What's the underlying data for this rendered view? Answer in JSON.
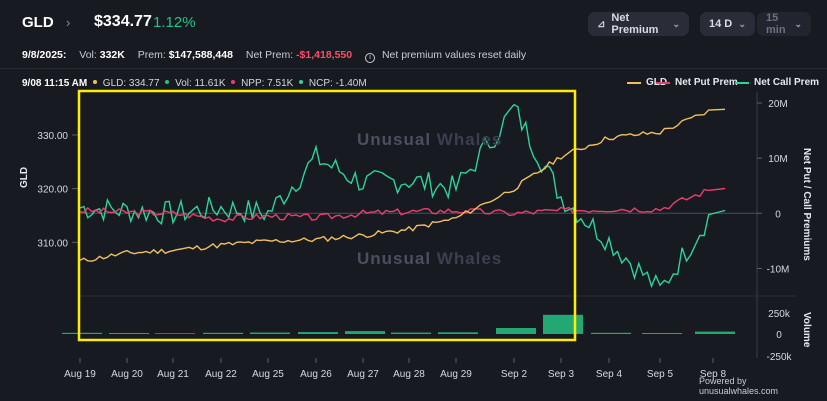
{
  "header": {
    "ticker": "GLD",
    "price": "$334.77",
    "change": "1.12%",
    "net_premium_btn": "Net Premium",
    "days_btn": "14 D",
    "mins_btn": "15 min"
  },
  "stats": {
    "date": "9/8/2025:",
    "vol_label": "Vol:",
    "vol_value": "332K",
    "prem_label": "Prem:",
    "prem_value": "$147,588,448",
    "net_prem_label": "Net Prem:",
    "net_prem_value": "-$1,418,550",
    "info_text": "Net premium values reset daily"
  },
  "cursor_line": {
    "time": "9/08 11:15 AM",
    "gld": "GLD: 334.77",
    "vol": "Vol: 11.61K",
    "npp": "NPP: 7.51K",
    "ncp": "NCP: -1.40M"
  },
  "legend": {
    "gld": "GLD",
    "net_put": "Net Put Prem",
    "net_call": "Net Call Prem"
  },
  "colors": {
    "gld": "#f0c060",
    "net_put": "#e8406a",
    "net_call": "#2ed397",
    "highlight_box": "#ffee00",
    "volume": "#25c281"
  },
  "watermark": {
    "a": "Unusual",
    "b": "Whales"
  },
  "axis": {
    "left_title": "GLD",
    "right_title": "Net Put / Call Premiums",
    "volume_title": "Volume",
    "left_ticks": [
      "330.00",
      "320.00",
      "310.00"
    ],
    "right_ticks": [
      "20M",
      "10M",
      "0",
      "-10M"
    ],
    "volume_ticks": [
      "250k",
      "0",
      "-250k"
    ],
    "x_ticks": [
      "Aug 19",
      "Aug 20",
      "Aug 21",
      "Aug 22",
      "Aug 25",
      "Aug 26",
      "Aug 27",
      "Aug 28",
      "Aug 29",
      "Sep 2",
      "Sep 3",
      "Sep 4",
      "Sep 5",
      "Sep 8"
    ]
  },
  "powered": "Powered by unusualwhales.com",
  "chart_data": {
    "type": "line",
    "x": [
      "Aug 19",
      "Aug 20",
      "Aug 21",
      "Aug 22",
      "Aug 25",
      "Aug 26",
      "Aug 27",
      "Aug 28",
      "Aug 29",
      "Sep 2",
      "Sep 3",
      "Sep 4",
      "Sep 5",
      "Sep 8"
    ],
    "series": [
      {
        "name": "GLD",
        "axis": "left",
        "values": [
          306.5,
          308.0,
          308.5,
          309.5,
          310.2,
          310.5,
          311.3,
          312.4,
          314.5,
          320.0,
          326.0,
          329.5,
          330.5,
          334.77
        ]
      },
      {
        "name": "Net Put Prem",
        "axis": "right",
        "values": [
          0.5,
          0.2,
          0.0,
          -1.0,
          -0.5,
          -0.8,
          0.0,
          0.3,
          0.5,
          0.0,
          0.5,
          0.8,
          0.8,
          4.5
        ]
      },
      {
        "name": "Net Call Prem",
        "axis": "right",
        "values": [
          1.0,
          0.5,
          0.0,
          1.0,
          0.0,
          10.0,
          5.5,
          6.0,
          4.5,
          19.0,
          3.0,
          -5.0,
          -14.0,
          0.5
        ]
      }
    ],
    "ylim_left": [
      300,
      338
    ],
    "ylim_right": [
      -15,
      22
    ]
  }
}
